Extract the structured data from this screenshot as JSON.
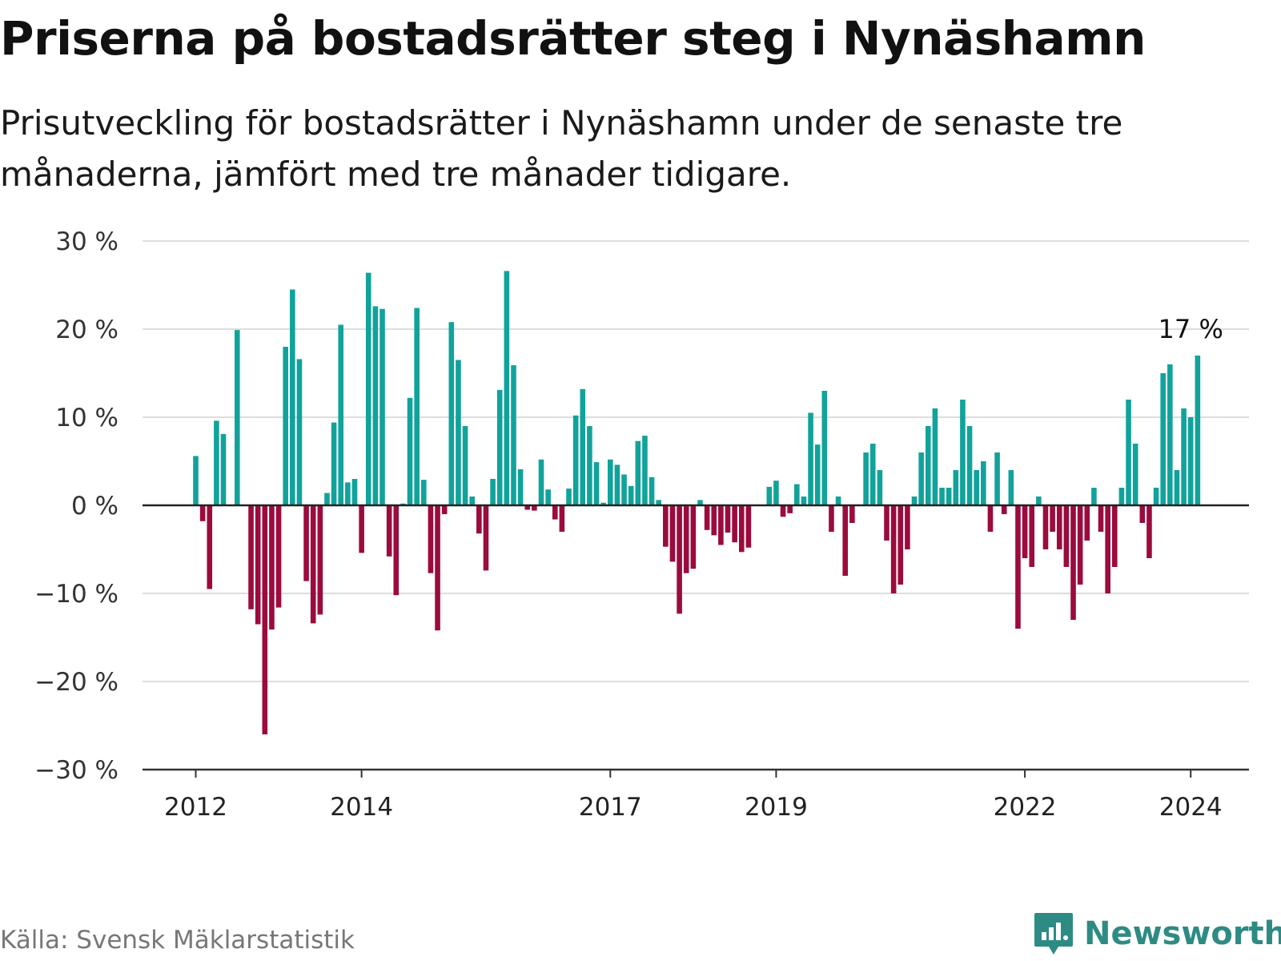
{
  "title": "Priserna på bostadsrätter steg i Nynäshamn",
  "subtitle": "Prisutveckling för bostadsrätter i Nynäshamn under de senaste tre månaderna, jämfört med tre månader tidigare.",
  "source": "Källa: Svensk Mäklarstatistik",
  "brand": "Newsworthy",
  "colors": {
    "positive": "#11a39b",
    "negative": "#9b0b3e",
    "grid": "#dddddd",
    "axis": "#333333",
    "brand": "#2e8b84"
  },
  "chart_data": {
    "type": "bar",
    "unit": "%",
    "ylim": [
      -30,
      30
    ],
    "y_ticks": [
      "30 %",
      "20 %",
      "10 %",
      "0 %",
      "−10 %",
      "−20 %",
      "−30 %"
    ],
    "y_tick_values": [
      30,
      20,
      10,
      0,
      -10,
      -20,
      -30
    ],
    "x_tick_labels": [
      "2012",
      "2014",
      "2017",
      "2019",
      "2022",
      "2024"
    ],
    "x_tick_months": [
      0,
      24,
      60,
      84,
      120,
      144
    ],
    "start": "2012-01",
    "annotation": {
      "label": "17 %",
      "month_index": 145,
      "value": 17
    },
    "values": [
      5.6,
      -1.8,
      -9.5,
      9.6,
      8.1,
      0,
      19.9,
      0,
      -11.8,
      -13.5,
      -26,
      -14.1,
      -11.6,
      18,
      24.5,
      16.6,
      -8.6,
      -13.4,
      -12.4,
      1.4,
      9.4,
      20.5,
      2.6,
      3,
      -5.4,
      26.4,
      22.6,
      22.3,
      -5.8,
      -10.2,
      0.2,
      12.2,
      22.4,
      2.9,
      -7.7,
      -14.2,
      -1,
      20.8,
      16.5,
      9,
      1,
      -3.2,
      -7.4,
      3,
      13.1,
      26.6,
      15.9,
      4.1,
      -0.5,
      -0.6,
      5.2,
      1.8,
      -1.6,
      -3,
      1.9,
      10.2,
      13.2,
      9,
      4.9,
      0.3,
      5.2,
      4.6,
      3.5,
      2.2,
      7.3,
      7.9,
      3.2,
      0.6,
      -4.7,
      -6.4,
      -12.3,
      -7.7,
      -7.2,
      0.6,
      -2.8,
      -3.4,
      -4.5,
      -3.1,
      -4.2,
      -5.3,
      -4.8,
      0,
      0,
      2.1,
      2.8,
      -1.3,
      -0.9,
      2.4,
      1,
      10.5,
      6.9,
      13,
      -3,
      1,
      -8,
      -2,
      0,
      6,
      7,
      4,
      -4,
      -10,
      -9,
      -5,
      1,
      6,
      9,
      11,
      2,
      2,
      4,
      12,
      9,
      4,
      5,
      -3,
      6,
      -1,
      4,
      -14,
      -6,
      -7,
      1,
      -5,
      -3,
      -5,
      -7,
      -13,
      -9,
      -4,
      2,
      -3,
      -10,
      -7,
      2,
      12,
      7,
      -2,
      -6,
      2,
      15,
      16,
      4,
      11,
      10,
      17
    ]
  }
}
